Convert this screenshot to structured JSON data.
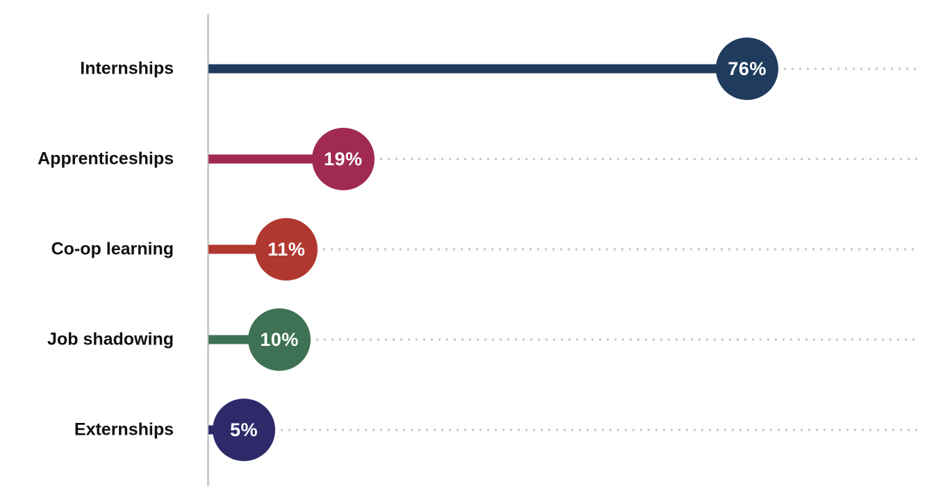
{
  "chart_data": {
    "type": "bar",
    "variant": "horizontal-lollipop",
    "title": "",
    "xlabel": "",
    "ylabel": "",
    "categories": [
      "Internships",
      "Apprenticeships",
      "Co-op learning",
      "Job shadowing",
      "Externships"
    ],
    "values": [
      76,
      19,
      11,
      10,
      5
    ],
    "value_labels": [
      "76%",
      "19%",
      "11%",
      "10%",
      "5%"
    ],
    "series_colors": [
      "#1f3c5e",
      "#a02a51",
      "#b13830",
      "#3f7254",
      "#2e2a6a"
    ],
    "xlim": [
      0,
      100
    ],
    "grid": "dotted-horizontal-leader-lines",
    "legend": "none",
    "axis_color": "#cbcbcb",
    "leader_dot_color": "#c5c5c5",
    "label_color": "#111111",
    "value_text_color": "#ffffff",
    "background_color": "#ffffff"
  }
}
